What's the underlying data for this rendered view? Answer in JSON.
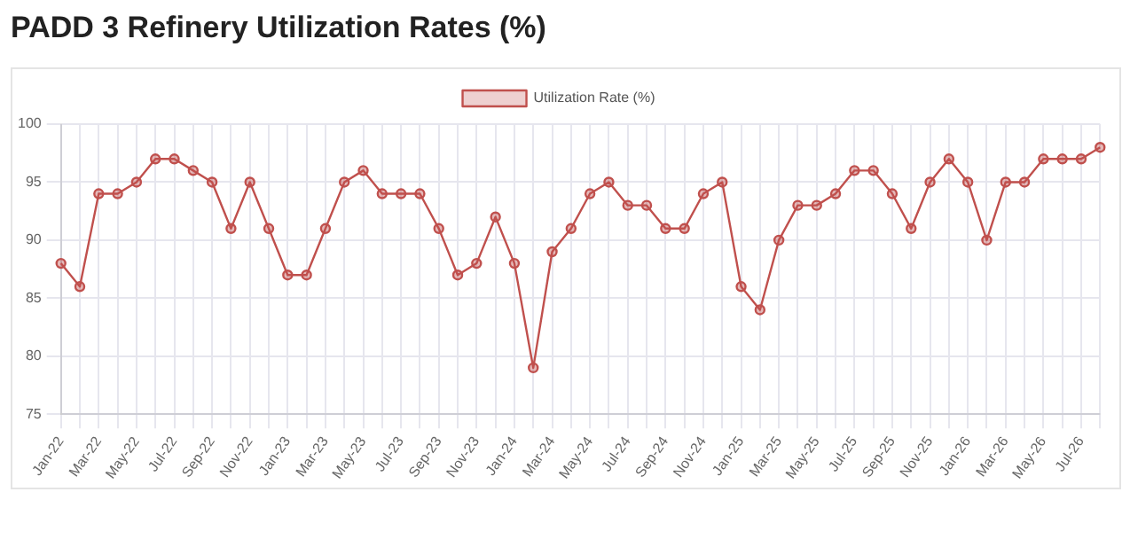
{
  "chart_data": {
    "type": "line",
    "title": "PADD 3 Refinery Utilization Rates (%)",
    "categories": [
      "Jan-22",
      null,
      "Mar-22",
      null,
      "May-22",
      null,
      "Jul-22",
      null,
      "Sep-22",
      null,
      "Nov-22",
      null,
      "Jan-23",
      null,
      "Mar-23",
      null,
      "May-23",
      null,
      "Jul-23",
      null,
      "Sep-23",
      null,
      "Nov-23",
      null,
      "Jan-24",
      null,
      "Mar-24",
      null,
      "May-24",
      null,
      "Jul-24",
      null,
      "Sep-24",
      null,
      "Nov-24",
      null,
      "Jan-25",
      null,
      "Mar-25",
      null,
      "May-25",
      null,
      "Jul-25",
      null,
      "Sep-25",
      null,
      "Nov-25",
      null,
      "Jan-26",
      null,
      "Mar-26",
      null,
      "May-26",
      null,
      "Jul-26",
      null
    ],
    "series": [
      {
        "name": "Utilization Rate (%)",
        "color": "#c0504d",
        "values": [
          88,
          86,
          94,
          94,
          95,
          97,
          97,
          96,
          95,
          91,
          95,
          91,
          87,
          87,
          91,
          95,
          96,
          94,
          94,
          94,
          91,
          87,
          88,
          92,
          88,
          79,
          89,
          91,
          94,
          95,
          93,
          93,
          91,
          91,
          94,
          95,
          86,
          84,
          90,
          93,
          93,
          94,
          96,
          96,
          94,
          91,
          95,
          97,
          95,
          90,
          95,
          95,
          97,
          97,
          97,
          98
        ]
      }
    ],
    "ylim": [
      75,
      100
    ],
    "yticks": [
      75,
      80,
      85,
      90,
      95,
      100
    ],
    "grid": true,
    "legend": "top",
    "marker": "circle",
    "line_style": "solid"
  }
}
